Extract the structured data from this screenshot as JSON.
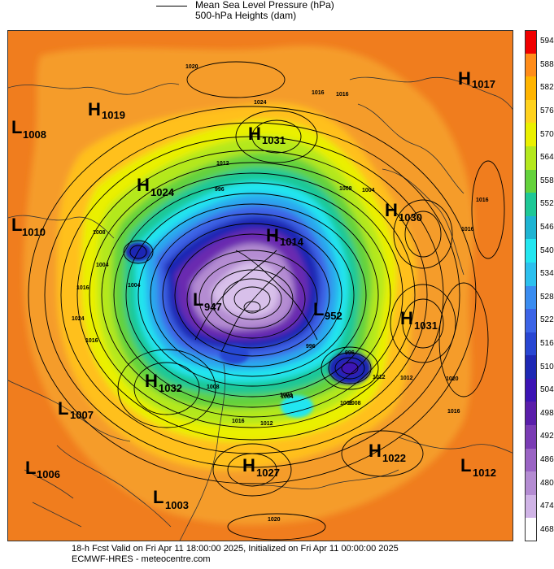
{
  "legend": {
    "line1": "Mean Sea Level Pressure (hPa)",
    "line2": "500-hPa Heights (dam)"
  },
  "colorbar": {
    "labels": [
      "594",
      "588",
      "582",
      "576",
      "570",
      "564",
      "558",
      "552",
      "546",
      "540",
      "534",
      "528",
      "522",
      "516",
      "510",
      "504",
      "498",
      "492",
      "486",
      "480",
      "474",
      "468"
    ],
    "colors": [
      "#f00000",
      "#ff8c1a",
      "#ffb400",
      "#ffd21e",
      "#eaf000",
      "#b4e81e",
      "#64d23c",
      "#1ec896",
      "#1eb4d2",
      "#23e6f0",
      "#2cc0ee",
      "#3a8cf0",
      "#3c64e6",
      "#2846d2",
      "#1e28b4",
      "#3c14b4",
      "#5a1eaa",
      "#7a3cb4",
      "#9a64c4",
      "#b48cd2",
      "#d0b4e6",
      "#ffffff"
    ]
  },
  "pressure_centers": [
    {
      "type": "H",
      "value": "1017"
    },
    {
      "type": "H",
      "value": "1019"
    },
    {
      "type": "L",
      "value": "1008"
    },
    {
      "type": "H",
      "value": "1031"
    },
    {
      "type": "H",
      "value": "1024"
    },
    {
      "type": "H",
      "value": "1030"
    },
    {
      "type": "L",
      "value": "1010"
    },
    {
      "type": "H",
      "value": "1014"
    },
    {
      "type": "L",
      "value": "947"
    },
    {
      "type": "L",
      "value": "952"
    },
    {
      "type": "H",
      "value": "1031"
    },
    {
      "type": "H",
      "value": "1032"
    },
    {
      "type": "L",
      "value": "1007"
    },
    {
      "type": "H",
      "value": "1022"
    },
    {
      "type": "L",
      "value": "1006"
    },
    {
      "type": "H",
      "value": "1027"
    },
    {
      "type": "L",
      "value": "1012"
    },
    {
      "type": "L",
      "value": "1003"
    }
  ],
  "isobar_labels": [
    "1020",
    "1024",
    "1016",
    "1016",
    "1012",
    "996",
    "1008",
    "1004",
    "1008",
    "1004",
    "1004",
    "1016",
    "1016",
    "1016",
    "1012",
    "1024",
    "1008",
    "1008",
    "1004",
    "996",
    "996",
    "1008",
    "1012",
    "1016",
    "1020",
    "1008",
    "1016",
    "1012",
    "1020",
    "1016"
  ],
  "footer": {
    "line1": "18-h Fcst Valid on Fri Apr 11 18:00:00 2025, Initialized on Fri Apr 11 00:00:00 2025",
    "line2": "ECMWF-HRES  - meteocentre.com"
  }
}
